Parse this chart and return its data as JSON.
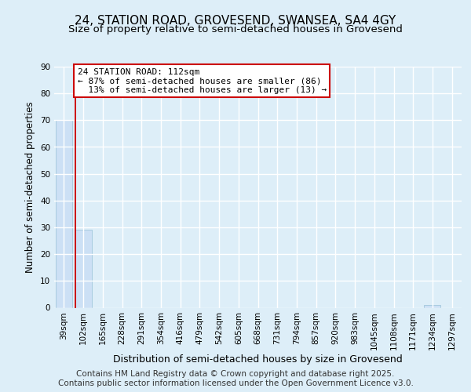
{
  "title1": "24, STATION ROAD, GROVESEND, SWANSEA, SA4 4GY",
  "title2": "Size of property relative to semi-detached houses in Grovesend",
  "xlabel": "Distribution of semi-detached houses by size in Grovesend",
  "ylabel": "Number of semi-detached properties",
  "bins": [
    "39sqm",
    "102sqm",
    "165sqm",
    "228sqm",
    "291sqm",
    "354sqm",
    "416sqm",
    "479sqm",
    "542sqm",
    "605sqm",
    "668sqm",
    "731sqm",
    "794sqm",
    "857sqm",
    "920sqm",
    "983sqm",
    "1045sqm",
    "1108sqm",
    "1171sqm",
    "1234sqm",
    "1297sqm"
  ],
  "counts": [
    70,
    29,
    0,
    0,
    0,
    0,
    0,
    0,
    0,
    0,
    0,
    0,
    0,
    0,
    0,
    0,
    0,
    0,
    0,
    1,
    0
  ],
  "subject_bin_index": 1,
  "subject_size": "112sqm",
  "pct_smaller": 87,
  "n_smaller": 86,
  "pct_larger": 13,
  "n_larger": 13,
  "bar_color": "#cce0f5",
  "bar_edge_color": "#a8cce0",
  "vline_color": "#cc0000",
  "annotation_box_color": "#cc0000",
  "annotation_line1": "24 STATION ROAD: 112sqm",
  "annotation_line2": "← 87% of semi-detached houses are smaller (86)",
  "annotation_line3": "  13% of semi-detached houses are larger (13) →",
  "footer": "Contains HM Land Registry data © Crown copyright and database right 2025.\nContains public sector information licensed under the Open Government Licence v3.0.",
  "ylim": [
    0,
    90
  ],
  "yticks": [
    0,
    10,
    20,
    30,
    40,
    50,
    60,
    70,
    80,
    90
  ],
  "fig_bg_color": "#ddeef8",
  "plot_bg_color": "#ddeef8",
  "grid_color": "#ffffff",
  "title1_fontsize": 11,
  "title2_fontsize": 9.5,
  "xlabel_fontsize": 9,
  "ylabel_fontsize": 8.5,
  "tick_fontsize": 7.5,
  "annotation_fontsize": 8,
  "footer_fontsize": 7.5
}
